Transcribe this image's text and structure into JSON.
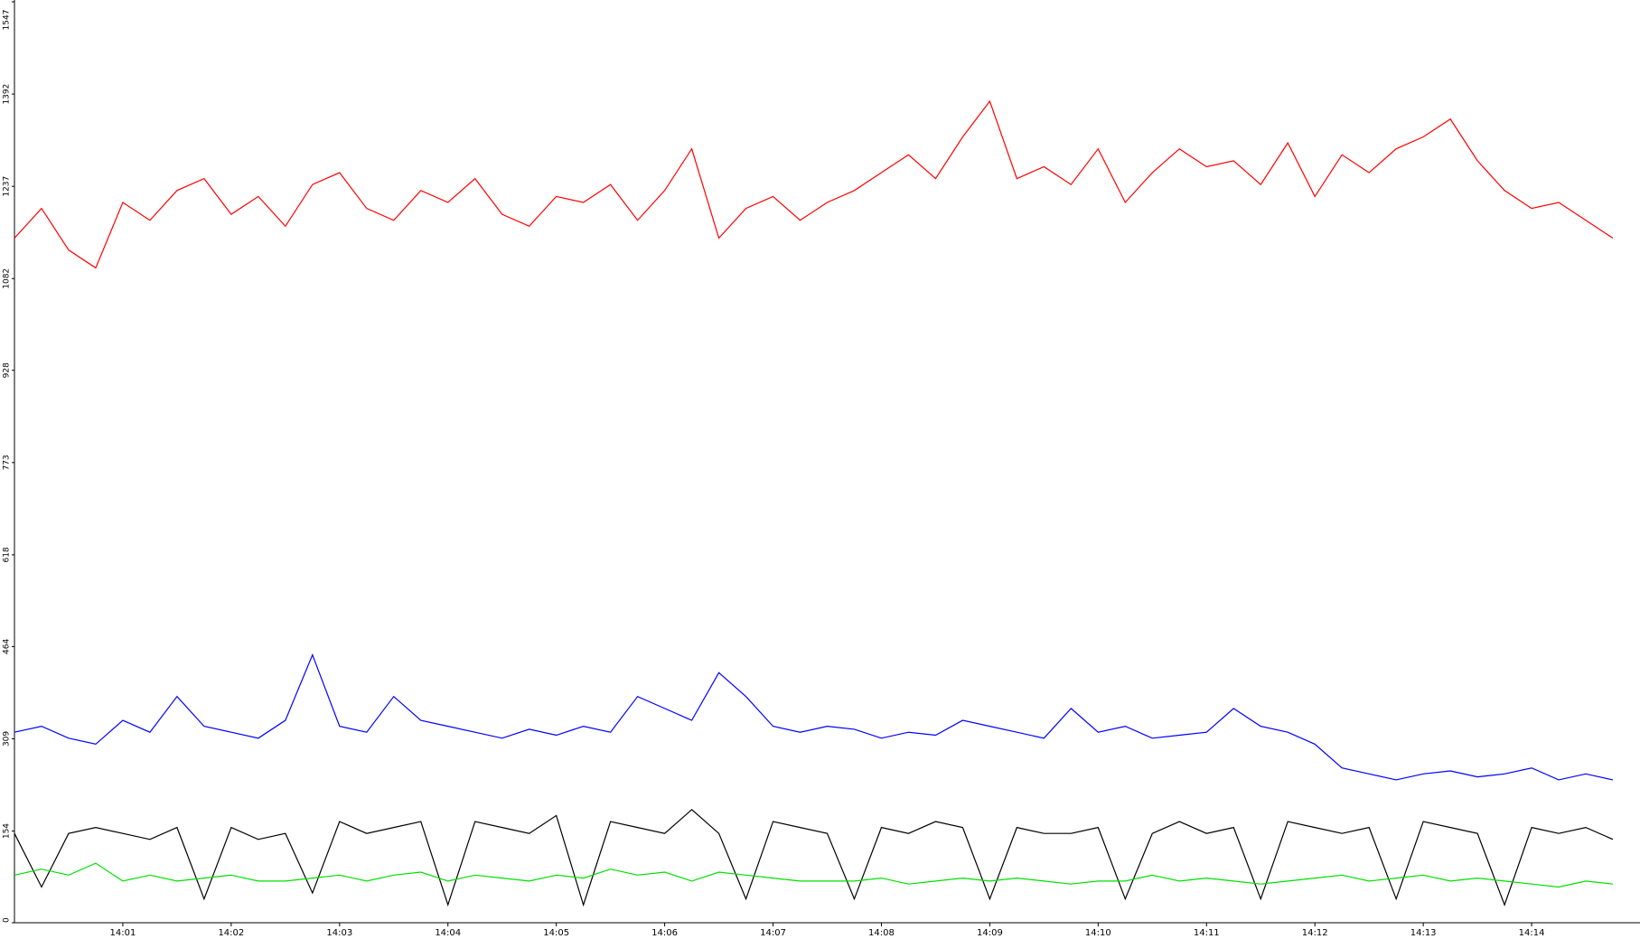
{
  "chart_data": {
    "type": "line",
    "categories": [
      null,
      null,
      null,
      null,
      "14:01",
      null,
      null,
      null,
      "14:02",
      null,
      null,
      null,
      "14:03",
      null,
      null,
      null,
      "14:04",
      null,
      null,
      null,
      "14:05",
      null,
      null,
      null,
      "14:06",
      null,
      null,
      null,
      "14:07",
      null,
      null,
      null,
      "14:08",
      null,
      null,
      null,
      "14:09",
      null,
      null,
      null,
      "14:10",
      null,
      null,
      null,
      "14:11",
      null,
      null,
      null,
      "14:12",
      null,
      null,
      null,
      "14:13",
      null,
      null,
      null,
      "14:14",
      null,
      null,
      null
    ],
    "series": [
      {
        "color": "#ff0000",
        "values": [
          1150,
          1200,
          1130,
          1100,
          1210,
          1180,
          1230,
          1250,
          1190,
          1220,
          1170,
          1240,
          1260,
          1200,
          1180,
          1230,
          1210,
          1250,
          1190,
          1170,
          1220,
          1210,
          1240,
          1180,
          1230,
          1300,
          1150,
          1200,
          1220,
          1180,
          1210,
          1230,
          1260,
          1290,
          1250,
          1320,
          1380,
          1250,
          1270,
          1240,
          1300,
          1210,
          1260,
          1300,
          1270,
          1280,
          1240,
          1310,
          1220,
          1290,
          1260,
          1300,
          1320,
          1350,
          1280,
          1230,
          1200,
          1210,
          1180,
          1150
        ]
      },
      {
        "color": "#0000ff",
        "values": [
          320,
          330,
          310,
          300,
          340,
          320,
          380,
          330,
          320,
          310,
          340,
          450,
          330,
          320,
          380,
          340,
          330,
          320,
          310,
          325,
          315,
          330,
          320,
          380,
          360,
          340,
          420,
          380,
          330,
          320,
          330,
          325,
          310,
          320,
          315,
          340,
          330,
          320,
          310,
          360,
          320,
          330,
          310,
          315,
          320,
          360,
          330,
          320,
          300,
          260,
          250,
          240,
          250,
          255,
          245,
          250,
          260,
          240,
          250,
          240
        ]
      },
      {
        "color": "#000000",
        "values": [
          150,
          60,
          150,
          160,
          150,
          140,
          160,
          40,
          160,
          140,
          150,
          50,
          170,
          150,
          160,
          170,
          30,
          170,
          160,
          150,
          180,
          30,
          170,
          160,
          150,
          190,
          150,
          40,
          170,
          160,
          150,
          40,
          160,
          150,
          170,
          160,
          40,
          160,
          150,
          150,
          160,
          40,
          150,
          170,
          150,
          160,
          40,
          170,
          160,
          150,
          160,
          40,
          170,
          160,
          150,
          30,
          160,
          150,
          160,
          140
        ]
      },
      {
        "color": "#00e000",
        "values": [
          80,
          90,
          80,
          100,
          70,
          80,
          70,
          75,
          80,
          70,
          70,
          75,
          80,
          70,
          80,
          85,
          70,
          80,
          75,
          70,
          80,
          75,
          90,
          80,
          85,
          70,
          85,
          80,
          75,
          70,
          70,
          70,
          75,
          65,
          70,
          75,
          70,
          75,
          70,
          65,
          70,
          70,
          80,
          70,
          75,
          70,
          65,
          70,
          75,
          80,
          70,
          75,
          80,
          70,
          75,
          70,
          65,
          60,
          70,
          65
        ]
      }
    ],
    "ylim": [
      0,
      1547
    ],
    "yticks": [
      0,
      154,
      309,
      464,
      618,
      773,
      928,
      1082,
      1237,
      1392,
      1547
    ]
  }
}
